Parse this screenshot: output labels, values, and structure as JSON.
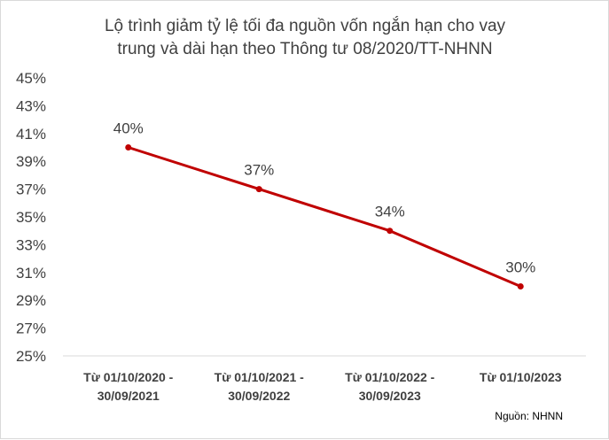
{
  "chart_data": {
    "type": "line",
    "title_lines": [
      "Lộ trình giảm tỷ lệ tối đa nguồn vốn ngắn hạn cho vay",
      "trung và dài hạn theo Thông tư 08/2020/TT-NHNN"
    ],
    "categories": [
      [
        "Từ 01/10/2020 -",
        "30/09/2021"
      ],
      [
        "Từ 01/10/2021 -",
        "30/09/2022"
      ],
      [
        "Từ 01/10/2022 -",
        "30/09/2023"
      ],
      [
        "Từ 01/10/2023"
      ]
    ],
    "series": [
      {
        "values": [
          40,
          37,
          34,
          30
        ],
        "data_labels": [
          "40%",
          "37%",
          "34%",
          "30%"
        ],
        "color": "#c00000"
      }
    ],
    "y_tick_values": [
      25,
      27,
      29,
      31,
      33,
      35,
      37,
      39,
      41,
      43,
      45
    ],
    "y_tick_labels": [
      "25%",
      "27%",
      "29%",
      "31%",
      "33%",
      "35%",
      "37%",
      "39%",
      "41%",
      "43%",
      "45%"
    ],
    "ylim": [
      25,
      45
    ],
    "grid": false,
    "x_axis_color": "#d9d9d9",
    "source": "Nguồn: NHNN"
  }
}
